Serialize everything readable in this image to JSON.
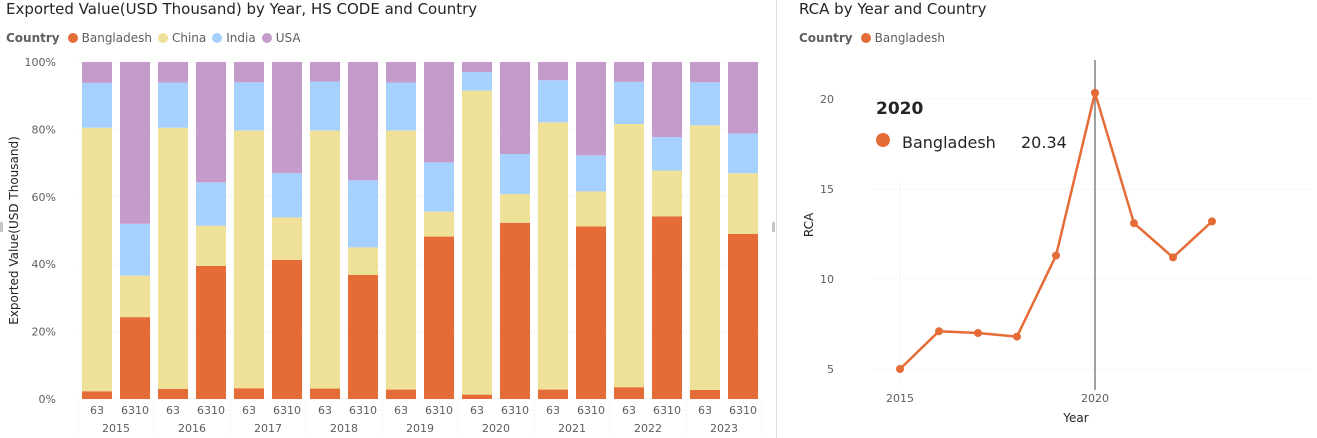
{
  "left_chart": {
    "title": "Exported Value(USD Thousand) by Year, HS CODE and Country",
    "legend_title": "Country",
    "colors": {
      "Bangladesh": "#e66c37",
      "China": "#f0e199",
      "India": "#a6d1ff",
      "USA": "#c49bcb"
    },
    "y_ticks": [
      "100%",
      "80%",
      "60%",
      "40%",
      "20%",
      "0%"
    ]
  },
  "right_chart": {
    "title": "RCA by Year and Country",
    "legend_title": "Country",
    "tooltip": {
      "year": "2020",
      "series": "Bangladesh",
      "value": "20.34"
    }
  },
  "chart_data": [
    {
      "type": "bar",
      "stacked": "100%",
      "title": "Exported Value(USD Thousand) by Year, HS CODE and Country",
      "xlabel": "",
      "ylabel": "Exported Value(USD Thousand)",
      "ylim": [
        0,
        100
      ],
      "legend": "top-left",
      "categories": [
        {
          "hs": "63",
          "year": "2015"
        },
        {
          "hs": "6310",
          "year": "2015"
        },
        {
          "hs": "63",
          "year": "2016"
        },
        {
          "hs": "6310",
          "year": "2016"
        },
        {
          "hs": "63",
          "year": "2017"
        },
        {
          "hs": "6310",
          "year": "2017"
        },
        {
          "hs": "63",
          "year": "2018"
        },
        {
          "hs": "6310",
          "year": "2018"
        },
        {
          "hs": "63",
          "year": "2019"
        },
        {
          "hs": "6310",
          "year": "2019"
        },
        {
          "hs": "63",
          "year": "2020"
        },
        {
          "hs": "6310",
          "year": "2020"
        },
        {
          "hs": "63",
          "year": "2021"
        },
        {
          "hs": "6310",
          "year": "2021"
        },
        {
          "hs": "63",
          "year": "2022"
        },
        {
          "hs": "6310",
          "year": "2022"
        },
        {
          "hs": "63",
          "year": "2023"
        },
        {
          "hs": "6310",
          "year": "2023"
        }
      ],
      "years": [
        "2015",
        "2016",
        "2017",
        "2018",
        "2019",
        "2020",
        "2021",
        "2022",
        "2023"
      ],
      "series": [
        {
          "name": "Bangladesh",
          "values": [
            2.3,
            24.3,
            3.0,
            39.5,
            3.2,
            41.3,
            3.1,
            36.8,
            2.8,
            48.2,
            1.3,
            52.3,
            2.8,
            51.2,
            3.5,
            54.2,
            2.7,
            49.0
          ]
        },
        {
          "name": "China",
          "values": [
            78.2,
            12.3,
            77.5,
            11.9,
            76.5,
            12.6,
            76.6,
            8.2,
            76.9,
            7.4,
            90.2,
            8.5,
            79.3,
            10.4,
            78.1,
            13.6,
            78.5,
            18.0
          ]
        },
        {
          "name": "India",
          "values": [
            13.3,
            15.4,
            13.4,
            12.9,
            14.3,
            13.1,
            14.5,
            19.9,
            14.2,
            14.6,
            5.5,
            11.9,
            12.5,
            10.7,
            12.5,
            9.9,
            12.8,
            11.8
          ]
        },
        {
          "name": "USA",
          "values": [
            6.2,
            48.0,
            6.1,
            35.7,
            6.0,
            33.0,
            5.8,
            35.1,
            6.1,
            29.8,
            3.0,
            27.3,
            5.4,
            27.7,
            5.9,
            22.3,
            6.0,
            21.2
          ]
        }
      ]
    },
    {
      "type": "line",
      "title": "RCA by Year and Country",
      "xlabel": "Year",
      "ylabel": "RCA",
      "x_ticks": [
        "2015",
        "2020"
      ],
      "y_ticks": [
        "5",
        "10",
        "15",
        "20"
      ],
      "xlim": [
        2015,
        2023
      ],
      "ylim": [
        3.8,
        21.7
      ],
      "legend": "top-left",
      "series": [
        {
          "name": "Bangladesh",
          "x": [
            2015,
            2016,
            2017,
            2018,
            2019,
            2020,
            2021,
            2022,
            2023
          ],
          "values": [
            5.0,
            7.1,
            7.0,
            6.8,
            11.3,
            20.34,
            13.1,
            11.2,
            13.2
          ]
        }
      ]
    }
  ]
}
